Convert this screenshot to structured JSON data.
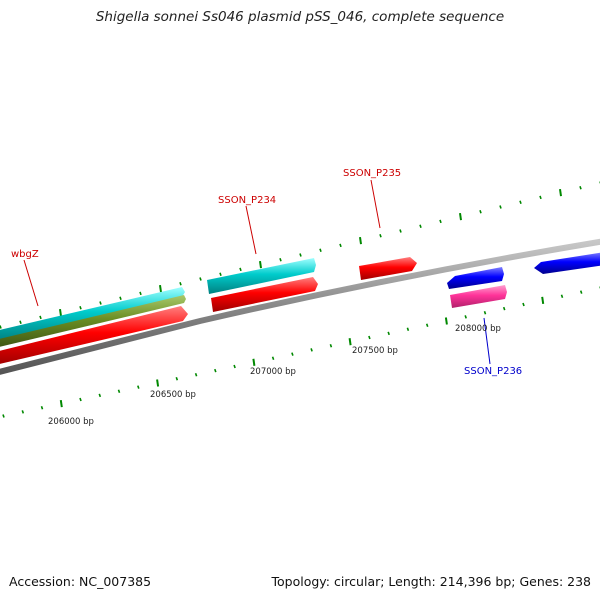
{
  "header": {
    "title": "Shigella sonnei Ss046 plasmid pSS_046, complete sequence"
  },
  "footer": {
    "accession": "Accession: NC_007385",
    "stats": "Topology: circular; Length: 214,396 bp; Genes: 238"
  },
  "colors": {
    "red": "#ff0000",
    "cyan": "#00cccc",
    "olive": "#6b8e23",
    "blue": "#0000ff",
    "magenta": "#ff3399",
    "tick": "#008800",
    "backbone": "#888888",
    "label_red": "#cc0000",
    "label_blue": "#0000cc"
  },
  "position_labels": [
    "206000 bp",
    "206500 bp",
    "207000 bp",
    "207500 bp",
    "208000 bp"
  ],
  "gene_labels": [
    {
      "text": "wbgZ",
      "color": "label_red"
    },
    {
      "text": "SSON_P234",
      "color": "label_red"
    },
    {
      "text": "SSON_P235",
      "color": "label_red"
    },
    {
      "text": "SSON_P236",
      "color": "label_blue"
    }
  ]
}
